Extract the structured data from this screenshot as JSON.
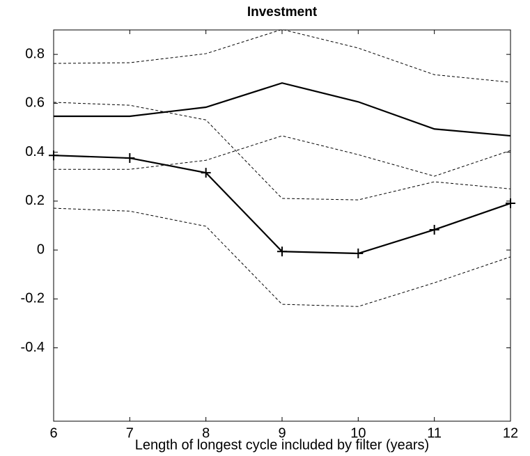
{
  "chart_data": {
    "type": "line",
    "title": "Investment",
    "xlabel": "Length of longest cycle included by filter (years)",
    "x": [
      6,
      7,
      8,
      9,
      10,
      11,
      12
    ],
    "xlim": [
      6,
      12
    ],
    "xticks": [
      6,
      7,
      8,
      9,
      10,
      11,
      12
    ],
    "ylim": [
      -0.7,
      0.9
    ],
    "yticks": [
      -0.4,
      -0.2,
      0,
      0.2,
      0.4,
      0.6,
      0.8
    ],
    "grid": false,
    "series": [
      {
        "color": "#000000",
        "dashed": false,
        "marker": "none",
        "values": [
          0.547,
          0.547,
          0.584,
          0.683,
          0.606,
          0.495,
          0.467
        ]
      },
      {
        "color": "#000000",
        "dashed": true,
        "marker": "none",
        "values": [
          0.763,
          0.766,
          0.803,
          0.902,
          0.826,
          0.717,
          0.686
        ]
      },
      {
        "color": "#000000",
        "dashed": true,
        "marker": "none",
        "values": [
          0.33,
          0.33,
          0.367,
          0.467,
          0.39,
          0.302,
          0.407
        ]
      },
      {
        "color": "#000000",
        "dashed": false,
        "marker": "+",
        "values": [
          0.387,
          0.376,
          0.316,
          -0.006,
          -0.014,
          0.083,
          0.191
        ]
      },
      {
        "color": "#000000",
        "dashed": true,
        "marker": "none",
        "values": [
          0.604,
          0.592,
          0.532,
          0.211,
          0.205,
          0.279,
          0.25
        ]
      },
      {
        "color": "#000000",
        "dashed": true,
        "marker": "none",
        "values": [
          0.171,
          0.159,
          0.097,
          -0.222,
          -0.231,
          -0.134,
          -0.028
        ]
      }
    ]
  }
}
